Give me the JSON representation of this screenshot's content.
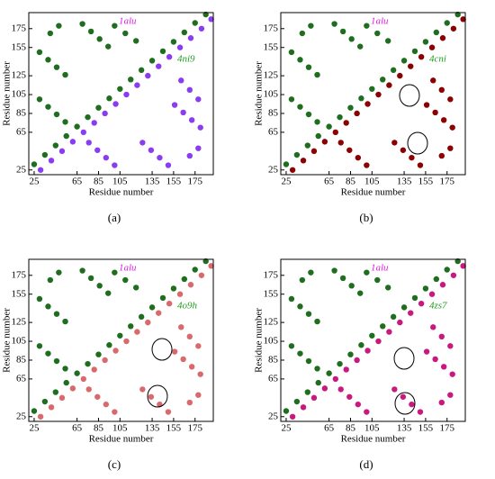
{
  "chart_data": [
    {
      "type": "scatter",
      "panel_label": "(a)",
      "xlabel": "Residue number",
      "ylabel": "Residue number",
      "xlim": [
        20,
        192
      ],
      "ylim": [
        20,
        192
      ],
      "xticks": [
        25,
        65,
        85,
        105,
        135,
        155,
        175
      ],
      "yticks": [
        25,
        65,
        85,
        105,
        125,
        155,
        175
      ],
      "series": [
        {
          "name": "1alu",
          "color": "#1f6e1f",
          "label_color": "#e020e0",
          "x": [
            25,
            35,
            45,
            55,
            65,
            75,
            85,
            95,
            105,
            115,
            125,
            135,
            145,
            155,
            165,
            175,
            185,
            30,
            38,
            46,
            54,
            70,
            78,
            86,
            94,
            100,
            110,
            120,
            30,
            38,
            46,
            54,
            40,
            48
          ],
          "y": [
            31,
            41,
            51,
            61,
            71,
            81,
            91,
            101,
            111,
            121,
            131,
            141,
            151,
            161,
            171,
            181,
            190,
            150,
            142,
            134,
            126,
            180,
            172,
            164,
            156,
            178,
            170,
            162,
            100,
            92,
            84,
            76,
            170,
            178
          ]
        },
        {
          "name": "4ni9",
          "color": "#8a3cf0",
          "label_color": "#1f9e1f",
          "x": [
            31,
            41,
            51,
            61,
            71,
            81,
            91,
            101,
            111,
            121,
            131,
            141,
            151,
            161,
            171,
            181,
            190,
            150,
            142,
            134,
            126,
            180,
            172,
            164,
            156,
            178,
            170,
            162,
            100,
            92,
            84,
            76,
            170,
            178
          ],
          "y": [
            25,
            35,
            45,
            55,
            65,
            75,
            85,
            95,
            105,
            115,
            125,
            135,
            145,
            155,
            165,
            175,
            185,
            30,
            38,
            46,
            54,
            70,
            78,
            86,
            94,
            100,
            110,
            120,
            30,
            38,
            46,
            54,
            40,
            48
          ]
        }
      ]
    },
    {
      "type": "scatter",
      "panel_label": "(b)",
      "xlabel": "Residue number",
      "ylabel": "Residue number",
      "xlim": [
        20,
        192
      ],
      "ylim": [
        20,
        192
      ],
      "xticks": [
        25,
        65,
        85,
        105,
        135,
        155,
        175
      ],
      "yticks": [
        25,
        65,
        85,
        105,
        125,
        155,
        175
      ],
      "series": [
        {
          "name": "1alu",
          "color": "#1f6e1f",
          "label_color": "#e020e0",
          "x": [
            25,
            35,
            45,
            55,
            65,
            75,
            85,
            95,
            105,
            115,
            125,
            135,
            145,
            155,
            165,
            175,
            185,
            30,
            38,
            46,
            54,
            70,
            78,
            86,
            94,
            100,
            110,
            120,
            30,
            38,
            46,
            54,
            40,
            48
          ],
          "y": [
            31,
            41,
            51,
            61,
            71,
            81,
            91,
            101,
            111,
            121,
            131,
            141,
            151,
            161,
            171,
            181,
            190,
            150,
            142,
            134,
            126,
            180,
            172,
            164,
            156,
            178,
            170,
            162,
            100,
            92,
            84,
            76,
            170,
            178
          ]
        },
        {
          "name": "4cni",
          "color": "#8b0000",
          "label_color": "#1f9e1f",
          "x": [
            31,
            41,
            51,
            61,
            71,
            81,
            91,
            101,
            111,
            121,
            131,
            141,
            151,
            161,
            171,
            181,
            190,
            150,
            142,
            134,
            126,
            180,
            172,
            164,
            156,
            178,
            170,
            162,
            100,
            92,
            84,
            76,
            170,
            178
          ],
          "y": [
            25,
            35,
            45,
            55,
            65,
            75,
            85,
            95,
            105,
            115,
            125,
            135,
            145,
            155,
            165,
            175,
            185,
            30,
            38,
            46,
            54,
            70,
            78,
            86,
            94,
            100,
            110,
            120,
            30,
            38,
            46,
            54,
            40,
            48
          ]
        }
      ]
    },
    {
      "type": "scatter",
      "panel_label": "(c)",
      "xlabel": "Residue number",
      "ylabel": "Residue number",
      "xlim": [
        20,
        192
      ],
      "ylim": [
        20,
        192
      ],
      "xticks": [
        25,
        65,
        85,
        105,
        135,
        155,
        175
      ],
      "yticks": [
        25,
        65,
        85,
        105,
        125,
        155,
        175
      ],
      "series": [
        {
          "name": "1alu",
          "color": "#1f6e1f",
          "label_color": "#e020e0",
          "x": [
            25,
            35,
            45,
            55,
            65,
            75,
            85,
            95,
            105,
            115,
            125,
            135,
            145,
            155,
            165,
            175,
            185,
            30,
            38,
            46,
            54,
            70,
            78,
            86,
            94,
            100,
            110,
            120,
            30,
            38,
            46,
            54,
            40,
            48
          ],
          "y": [
            31,
            41,
            51,
            61,
            71,
            81,
            91,
            101,
            111,
            121,
            131,
            141,
            151,
            161,
            171,
            181,
            190,
            150,
            142,
            134,
            126,
            180,
            172,
            164,
            156,
            178,
            170,
            162,
            100,
            92,
            84,
            76,
            170,
            178
          ]
        },
        {
          "name": "4o9h",
          "color": "#d9696b",
          "label_color": "#1f9e1f",
          "x": [
            31,
            41,
            51,
            61,
            71,
            81,
            91,
            101,
            111,
            121,
            131,
            141,
            151,
            161,
            171,
            181,
            190,
            150,
            142,
            134,
            126,
            180,
            172,
            164,
            156,
            178,
            170,
            162,
            100,
            92,
            84,
            76,
            170,
            178
          ],
          "y": [
            25,
            35,
            45,
            55,
            65,
            75,
            85,
            95,
            105,
            115,
            125,
            135,
            145,
            155,
            165,
            175,
            185,
            30,
            38,
            46,
            54,
            70,
            78,
            86,
            94,
            100,
            110,
            120,
            30,
            38,
            46,
            54,
            40,
            48
          ]
        }
      ]
    },
    {
      "type": "scatter",
      "panel_label": "(d)",
      "xlabel": "Residue number",
      "ylabel": "Residue number",
      "xlim": [
        20,
        192
      ],
      "ylim": [
        20,
        192
      ],
      "xticks": [
        25,
        65,
        85,
        105,
        135,
        155,
        175
      ],
      "yticks": [
        25,
        65,
        85,
        105,
        125,
        155,
        175
      ],
      "series": [
        {
          "name": "1alu",
          "color": "#1f6e1f",
          "label_color": "#e020e0",
          "x": [
            25,
            35,
            45,
            55,
            65,
            75,
            85,
            95,
            105,
            115,
            125,
            135,
            145,
            155,
            165,
            175,
            185,
            30,
            38,
            46,
            54,
            70,
            78,
            86,
            94,
            100,
            110,
            120,
            30,
            38,
            46,
            54,
            40,
            48
          ],
          "y": [
            31,
            41,
            51,
            61,
            71,
            81,
            91,
            101,
            111,
            121,
            131,
            141,
            151,
            161,
            171,
            181,
            190,
            150,
            142,
            134,
            126,
            180,
            172,
            164,
            156,
            178,
            170,
            162,
            100,
            92,
            84,
            76,
            170,
            178
          ]
        },
        {
          "name": "4zs7",
          "color": "#c8197f",
          "label_color": "#1f9e1f",
          "x": [
            31,
            41,
            51,
            61,
            71,
            81,
            91,
            101,
            111,
            121,
            131,
            141,
            151,
            161,
            171,
            181,
            190,
            150,
            142,
            134,
            126,
            180,
            172,
            164,
            156,
            178,
            170,
            162,
            100,
            92,
            84,
            76,
            170,
            178
          ],
          "y": [
            25,
            35,
            45,
            55,
            65,
            75,
            85,
            95,
            105,
            115,
            125,
            135,
            145,
            155,
            165,
            175,
            185,
            30,
            38,
            46,
            54,
            70,
            78,
            86,
            94,
            100,
            110,
            120,
            30,
            38,
            46,
            54,
            40,
            48
          ]
        }
      ]
    }
  ]
}
